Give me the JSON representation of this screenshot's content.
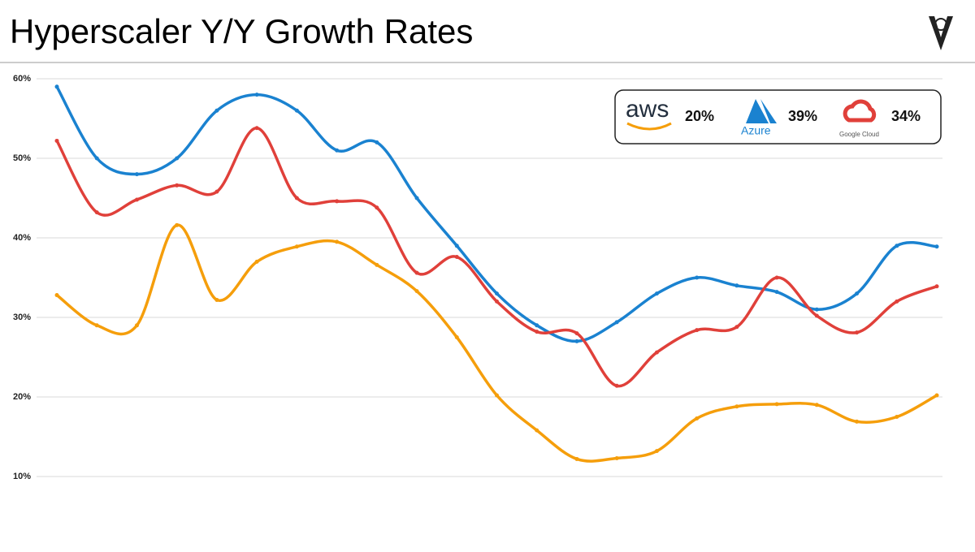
{
  "chart_data": {
    "type": "line",
    "title": "Hyperscaler Y/Y Growth Rates",
    "categories": [
      null,
      null,
      null,
      null,
      null,
      null,
      null,
      null,
      null,
      null,
      null,
      null,
      null,
      null,
      null,
      null,
      null,
      null,
      null,
      null,
      null,
      null,
      null
    ],
    "series": [
      {
        "name": "aws",
        "color": "#f59e0b",
        "label": "20%",
        "values": [
          32.8,
          29,
          29,
          41.6,
          32.2,
          37,
          38.9,
          39.5,
          36.6,
          33.3,
          27.5,
          20.2,
          15.8,
          12.2,
          12.3,
          13.2,
          17.3,
          18.8,
          19.1,
          19,
          16.9,
          17.5,
          20.2
        ]
      },
      {
        "name": "Azure",
        "color": "#1a82d0",
        "label": "39%",
        "values": [
          59,
          50,
          48,
          50,
          56,
          58,
          56,
          51,
          52,
          45,
          39,
          33,
          29,
          27,
          29.4,
          33,
          35,
          34,
          33.2,
          31,
          33,
          39,
          38.9
        ]
      },
      {
        "name": "Google Cloud",
        "color": "#e0403a",
        "label": "34%",
        "values": [
          52.2,
          43.2,
          44.8,
          46.6,
          45.8,
          53.8,
          45,
          44.6,
          43.8,
          35.6,
          37.6,
          32,
          28.2,
          28,
          21.4,
          25.6,
          28.4,
          28.8,
          35,
          30.2,
          28.1,
          32,
          33.9
        ]
      }
    ],
    "ylim": [
      10,
      60
    ],
    "yticks": [
      {
        "value": 10,
        "label": "10%"
      },
      {
        "value": 20,
        "label": "20%"
      },
      {
        "value": 30,
        "label": "30%"
      },
      {
        "value": 40,
        "label": "40%"
      },
      {
        "value": 50,
        "label": "50%"
      },
      {
        "value": 60,
        "label": "60%"
      }
    ],
    "grid": true
  }
}
